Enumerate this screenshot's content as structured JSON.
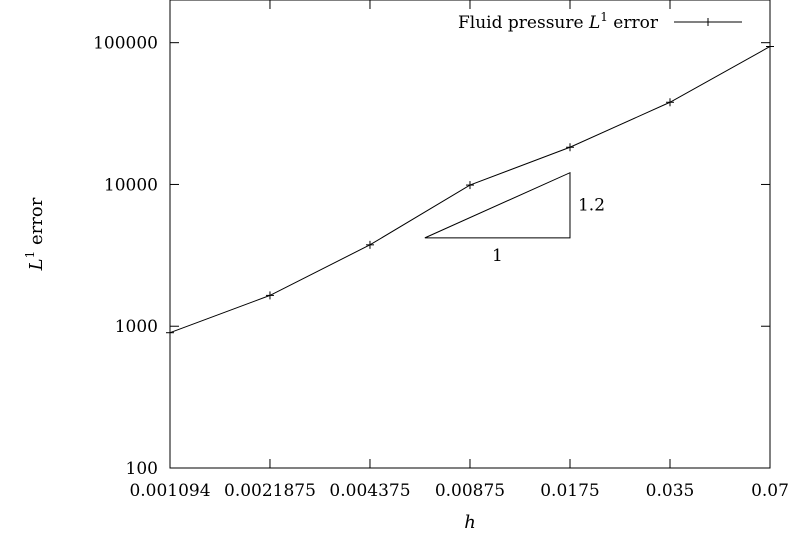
{
  "chart_data": {
    "type": "line",
    "title": "",
    "xlabel": "h",
    "ylabel": "L1 error",
    "ylabel_parts": {
      "base": "L",
      "sup": "1",
      "rest": " error"
    },
    "x_scale": "log2",
    "y_scale": "log10",
    "xlim": [
      0.001094,
      0.07
    ],
    "ylim": [
      100,
      200000
    ],
    "x_ticks": [
      {
        "value": 0.001094,
        "label": "0.001094"
      },
      {
        "value": 0.0021875,
        "label": "0.0021875"
      },
      {
        "value": 0.004375,
        "label": "0.004375"
      },
      {
        "value": 0.00875,
        "label": "0.00875"
      },
      {
        "value": 0.0175,
        "label": "0.0175"
      },
      {
        "value": 0.035,
        "label": "0.035"
      },
      {
        "value": 0.07,
        "label": "0.07"
      }
    ],
    "y_ticks": [
      {
        "value": 100,
        "label": "100"
      },
      {
        "value": 1000,
        "label": "1000"
      },
      {
        "value": 10000,
        "label": "10000"
      },
      {
        "value": 100000,
        "label": "100000"
      }
    ],
    "grid": false,
    "legend": {
      "position": "top-right"
    },
    "series": [
      {
        "name": "Fluid pressure L1 error",
        "name_parts": {
          "pre": "Fluid pressure ",
          "base": "L",
          "sup": "1",
          "post": " error"
        },
        "x": [
          0.001094,
          0.0021875,
          0.004375,
          0.00875,
          0.0175,
          0.035,
          0.07
        ],
        "y": [
          900,
          1650,
          3750,
          9900,
          18300,
          38000,
          94000
        ]
      }
    ],
    "annotations": [
      {
        "type": "slope-triangle",
        "x_start": 0.0064,
        "x_end": 0.0175,
        "y_base": 4200,
        "y_top": 12100,
        "run_label": "1",
        "rise_label": "1.2"
      }
    ]
  }
}
